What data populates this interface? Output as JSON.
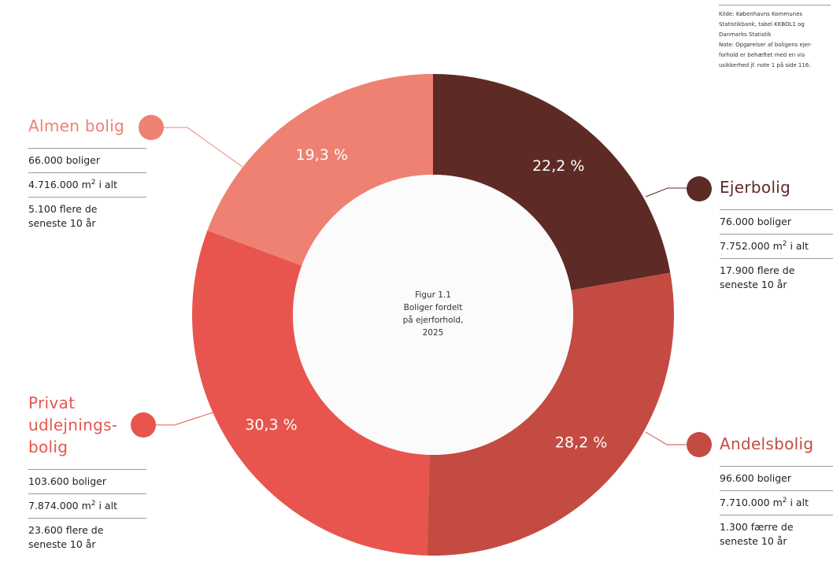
{
  "source": {
    "lines": [
      "Kilde: Københavns Kommunes",
      "Statistikbank, tabel KKBOL1 og",
      "Danmarks Statistik",
      "Note: Opgørelser af boligens ejer-",
      "forhold er behæftet med en vis",
      "usikkerhed jf. note 1 på side 116."
    ]
  },
  "center": {
    "line1": "Figur 1.1",
    "line2": "Boliger fordelt",
    "line3": "på ejerforhold,",
    "line4": "2025"
  },
  "segments": {
    "ejerbolig": {
      "name": "Ejerbolig",
      "pct_label": "22,2 %",
      "boliger": "76.000 boliger",
      "areal": "7.752.000 m",
      "areal_sup": "2",
      "areal_suffix": " i alt",
      "change_l1": "17.900 flere de",
      "change_l2": "seneste 10 år"
    },
    "andelsbolig": {
      "name": "Andelsbolig",
      "pct_label": "28,2 %",
      "boliger": "96.600 boliger",
      "areal": "7.710.000 m",
      "areal_sup": "2",
      "areal_suffix": " i alt",
      "change_l1": "1.300 færre de",
      "change_l2": "seneste 10 år"
    },
    "privat": {
      "name_l1": "Privat",
      "name_l2": "udlejnings-",
      "name_l3": "bolig",
      "pct_label": "30,3 %",
      "boliger": "103.600 boliger",
      "areal": "7.874.000 m",
      "areal_sup": "2",
      "areal_suffix": " i alt",
      "change_l1": "23.600 flere de",
      "change_l2": "seneste 10 år"
    },
    "almen": {
      "name": "Almen bolig",
      "pct_label": "19,3 %",
      "boliger": "66.000 boliger",
      "areal": "4.716.000 m",
      "areal_sup": "2",
      "areal_suffix": " i alt",
      "change_l1": "5.100 flere de",
      "change_l2": "seneste 10 år"
    }
  },
  "chart_data": {
    "type": "pie",
    "donut": true,
    "title": "Figur 1.1 Boliger fordelt på ejerforhold, 2025",
    "slices": [
      {
        "label": "Ejerbolig",
        "value": 22.2,
        "color": "#5e2a26"
      },
      {
        "label": "Andelsbolig",
        "value": 28.2,
        "color": "#c44b42"
      },
      {
        "label": "Privat udlejningsbolig",
        "value": 30.3,
        "color": "#e8554e"
      },
      {
        "label": "Almen bolig",
        "value": 19.3,
        "color": "#ee8171"
      }
    ]
  },
  "colors": {
    "ejerbolig": "#5e2a26",
    "andelsbolig": "#c44b42",
    "privat": "#e8554e",
    "almen": "#ee8171",
    "center": "#fbfbfb",
    "pct_text": "#ffffff"
  }
}
